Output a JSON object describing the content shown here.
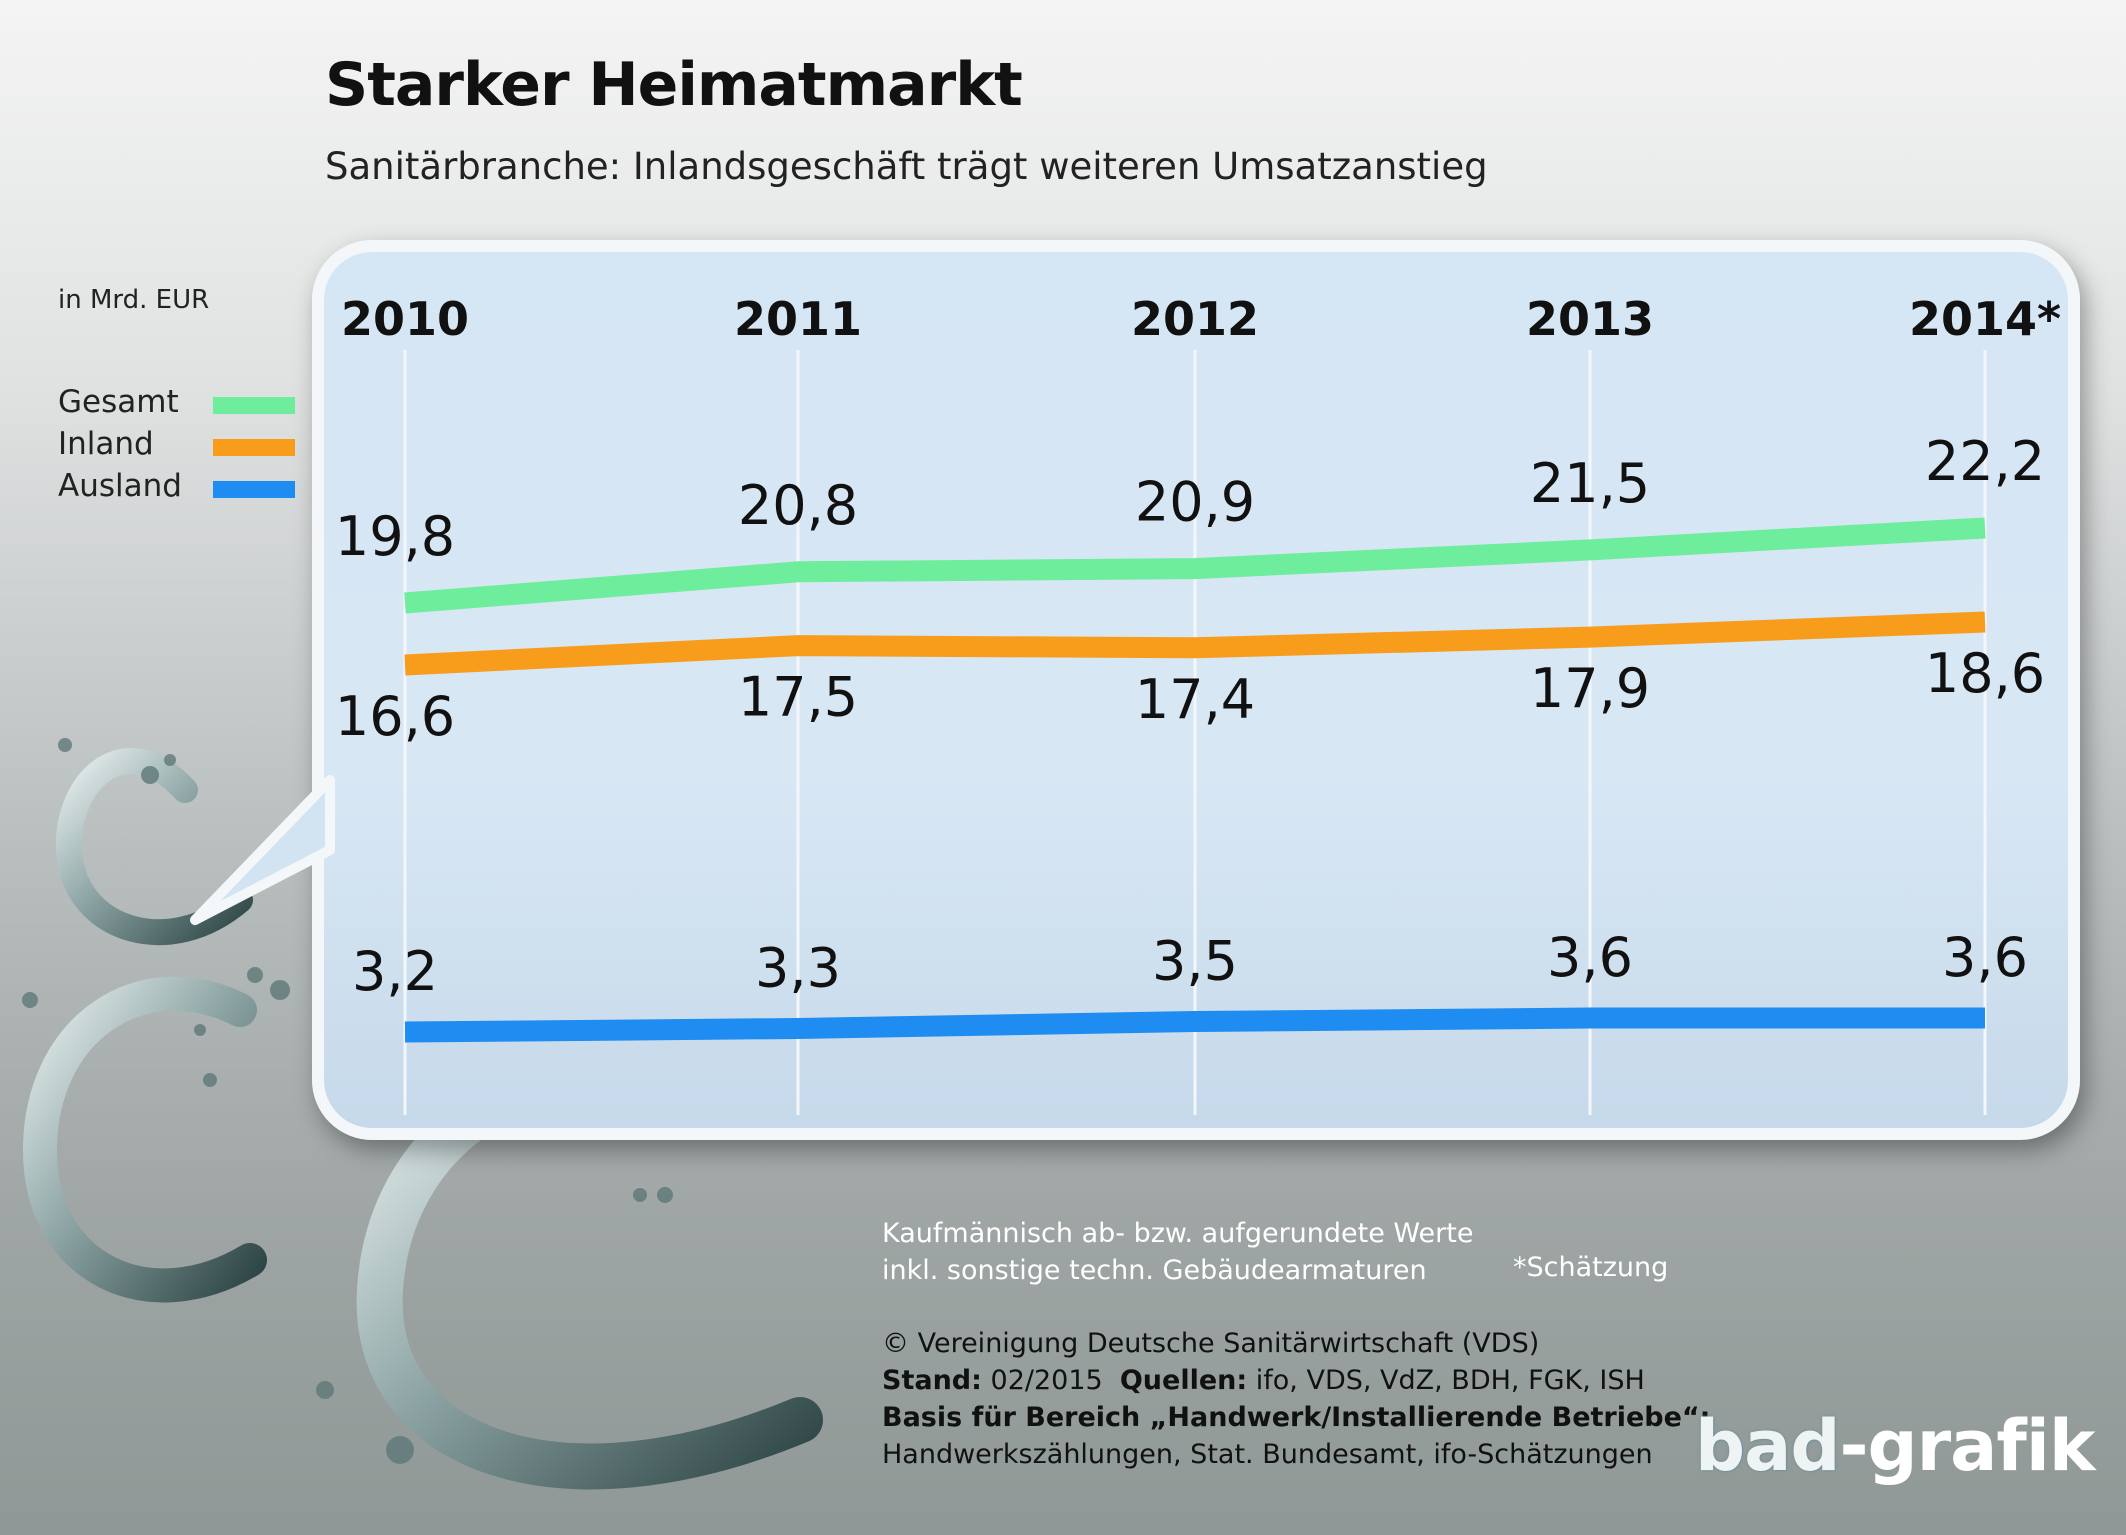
{
  "header": {
    "title": "Starker Heimatmarkt",
    "subtitle": "Sanitärbranche: Inlandsgeschäft trägt weiteren Umsatzanstieg"
  },
  "unit_label": "in Mrd. EUR",
  "legend": [
    {
      "label": "Gesamt",
      "color": "#6eed9c"
    },
    {
      "label": "Inland",
      "color": "#f89c1c"
    },
    {
      "label": "Ausland",
      "color": "#1e8cf0"
    }
  ],
  "chart_data": {
    "type": "line",
    "categories": [
      "2010",
      "2011",
      "2012",
      "2013",
      "2014*"
    ],
    "series": [
      {
        "name": "Gesamt",
        "color": "#6eed9c",
        "values": [
          19.8,
          20.8,
          20.9,
          21.5,
          22.2
        ],
        "labels": [
          "19,8",
          "20,8",
          "20,9",
          "21,5",
          "22,2"
        ]
      },
      {
        "name": "Inland",
        "color": "#f89c1c",
        "values": [
          16.6,
          17.5,
          17.4,
          17.9,
          18.6
        ],
        "labels": [
          "16,6",
          "17,5",
          "17,4",
          "17,9",
          "18,6"
        ]
      },
      {
        "name": "Ausland",
        "color": "#1e8cf0",
        "values": [
          3.2,
          3.3,
          3.5,
          3.6,
          3.6
        ],
        "labels": [
          "3,2",
          "3,3",
          "3,5",
          "3,6",
          "3,6"
        ]
      }
    ],
    "ylabel": "in Mrd. EUR",
    "grid": "vertical"
  },
  "notes": {
    "line1": "Kaufmännisch ab- bzw. aufgerundete Werte",
    "line2": "inkl. sonstige techn. Gebäudearmaturen",
    "estimate": "*Schätzung"
  },
  "source": {
    "copyright": "© Vereinigung Deutsche Sanitärwirtschaft (VDS)",
    "stand_label": "Stand:",
    "stand_value": "02/2015",
    "quellen_label": "Quellen:",
    "quellen_value": "ifo, VDS, VdZ, BDH, FGK, ISH",
    "basis_label": "Basis für Bereich „Handwerk/Installierende Betriebe“:",
    "basis_value": "Handwerkszählungen, Stat. Bundesamt, ifo-Schätzungen"
  },
  "logo": {
    "part1": "bad",
    "part2": "-grafik"
  }
}
